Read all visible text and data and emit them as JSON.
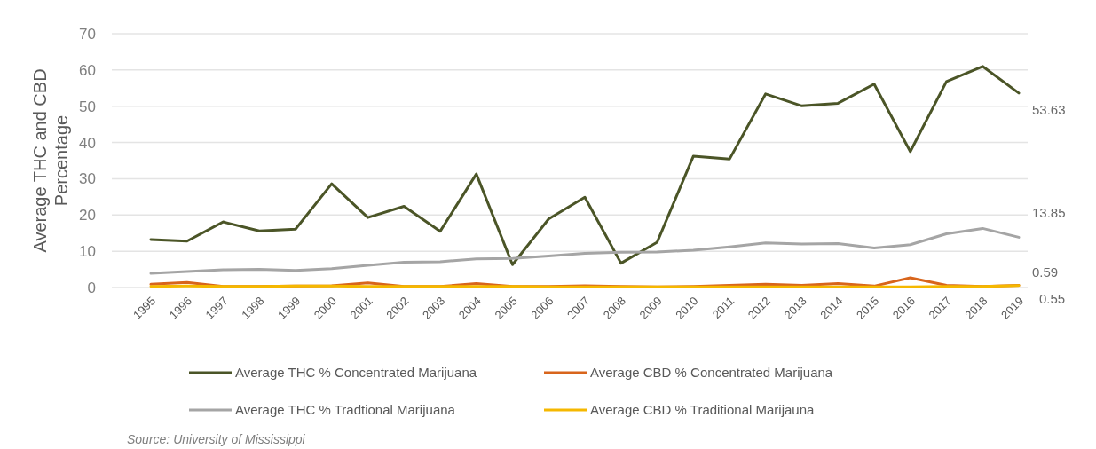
{
  "chart_data": {
    "type": "line",
    "ylabel": "Average THC and CBD Percentage",
    "categories": [
      "1995",
      "1996",
      "1997",
      "1998",
      "1999",
      "2000",
      "2001",
      "2002",
      "2003",
      "2004",
      "2005",
      "2006",
      "2007",
      "2008",
      "2009",
      "2010",
      "2011",
      "2012",
      "2013",
      "2014",
      "2015",
      "2016",
      "2017",
      "2018",
      "2019"
    ],
    "series": [
      {
        "name": "Average THC % Concentrated Marijuana",
        "color": "#4b5527",
        "values": [
          13.2,
          12.8,
          18.1,
          15.6,
          16.1,
          28.6,
          19.3,
          22.4,
          15.5,
          31.3,
          6.3,
          18.9,
          24.9,
          6.7,
          12.5,
          36.2,
          35.4,
          53.4,
          50.1,
          50.8,
          56.1,
          37.5,
          56.8,
          61.0,
          53.63
        ],
        "value_labels": [
          null,
          null,
          null,
          null,
          null,
          null,
          null,
          null,
          null,
          null,
          null,
          null,
          null,
          null,
          null,
          null,
          null,
          null,
          null,
          null,
          null,
          null,
          null,
          null,
          "53.63"
        ]
      },
      {
        "name": "Average CBD % Concentrated Marijuana",
        "color": "#d8651c",
        "values": [
          0.9,
          1.4,
          0.3,
          0.3,
          0.4,
          0.5,
          1.3,
          0.3,
          0.3,
          1.1,
          0.3,
          0.3,
          0.5,
          0.3,
          0.2,
          0.3,
          0.6,
          0.9,
          0.6,
          1.1,
          0.4,
          2.7,
          0.6,
          0.3,
          0.59
        ],
        "value_labels": [
          null,
          null,
          null,
          null,
          null,
          null,
          null,
          null,
          null,
          null,
          null,
          null,
          null,
          null,
          null,
          null,
          null,
          null,
          null,
          null,
          null,
          null,
          null,
          null,
          "0.59"
        ]
      },
      {
        "name": "Average THC % Tradtional Marijuana",
        "color": "#a5a5a5",
        "values": [
          3.9,
          4.4,
          4.9,
          5.0,
          4.7,
          5.2,
          6.1,
          7.0,
          7.1,
          7.9,
          8.0,
          8.7,
          9.4,
          9.7,
          9.8,
          10.3,
          11.2,
          12.3,
          12.0,
          12.1,
          10.9,
          11.8,
          14.8,
          16.3,
          13.85
        ],
        "value_labels": [
          null,
          null,
          null,
          null,
          null,
          null,
          null,
          null,
          null,
          null,
          null,
          null,
          null,
          null,
          null,
          null,
          null,
          null,
          null,
          null,
          null,
          null,
          null,
          null,
          "13.85"
        ]
      },
      {
        "name": "Average CBD % Traditional Marijauna",
        "color": "#f5b800",
        "values": [
          0.3,
          0.4,
          0.3,
          0.3,
          0.4,
          0.4,
          0.3,
          0.3,
          0.3,
          0.3,
          0.3,
          0.2,
          0.2,
          0.2,
          0.2,
          0.2,
          0.2,
          0.2,
          0.2,
          0.2,
          0.2,
          0.2,
          0.3,
          0.3,
          0.55
        ],
        "value_labels": [
          null,
          null,
          null,
          null,
          null,
          null,
          null,
          null,
          null,
          null,
          null,
          null,
          null,
          null,
          null,
          null,
          null,
          null,
          null,
          null,
          null,
          null,
          null,
          null,
          "0.55"
        ]
      }
    ],
    "ylim": [
      0,
      70
    ],
    "yticks": [
      0,
      10,
      20,
      30,
      40,
      50,
      60,
      70
    ],
    "grid": "y",
    "legend": "bottom",
    "marker": "none",
    "line_style": "solid",
    "annotations": [
      "Source: University of Mississippi"
    ]
  }
}
